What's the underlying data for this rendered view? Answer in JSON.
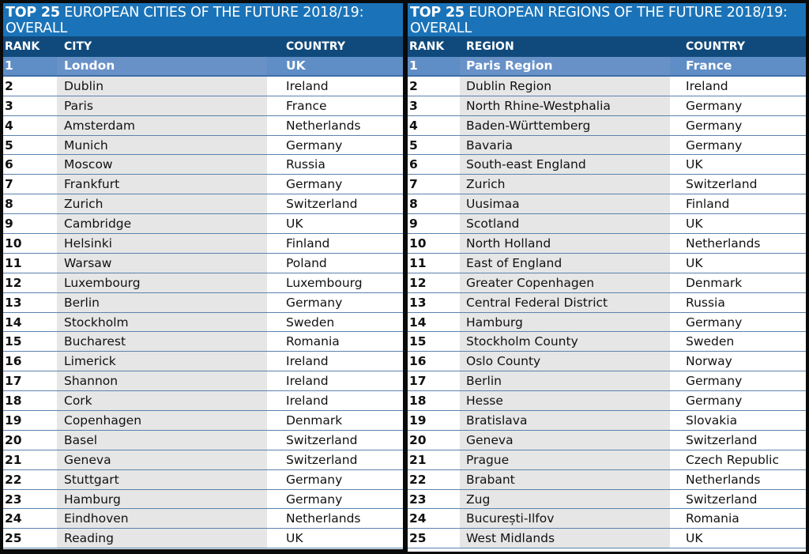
{
  "left": {
    "title_bold": "TOP 25",
    "title_rest": " EUROPEAN CITIES OF THE FUTURE 2018/19: OVERALL",
    "headers": {
      "rank": "RANK",
      "name": "CITY",
      "country": "COUNTRY"
    },
    "rows": [
      {
        "rank": "1",
        "name": "London",
        "country": "UK"
      },
      {
        "rank": "2",
        "name": "Dublin",
        "country": "Ireland"
      },
      {
        "rank": "3",
        "name": "Paris",
        "country": "France"
      },
      {
        "rank": "4",
        "name": "Amsterdam",
        "country": "Netherlands"
      },
      {
        "rank": "5",
        "name": "Munich",
        "country": "Germany"
      },
      {
        "rank": "6",
        "name": "Moscow",
        "country": "Russia"
      },
      {
        "rank": "7",
        "name": "Frankfurt",
        "country": "Germany"
      },
      {
        "rank": "8",
        "name": "Zurich",
        "country": "Switzerland"
      },
      {
        "rank": "9",
        "name": "Cambridge",
        "country": "UK"
      },
      {
        "rank": "10",
        "name": "Helsinki",
        "country": "Finland"
      },
      {
        "rank": "11",
        "name": "Warsaw",
        "country": "Poland"
      },
      {
        "rank": "12",
        "name": "Luxembourg",
        "country": "Luxembourg"
      },
      {
        "rank": "13",
        "name": "Berlin",
        "country": "Germany"
      },
      {
        "rank": "14",
        "name": "Stockholm",
        "country": "Sweden"
      },
      {
        "rank": "15",
        "name": "Bucharest",
        "country": "Romania"
      },
      {
        "rank": "16",
        "name": "Limerick",
        "country": "Ireland"
      },
      {
        "rank": "17",
        "name": "Shannon",
        "country": "Ireland"
      },
      {
        "rank": "18",
        "name": "Cork",
        "country": "Ireland"
      },
      {
        "rank": "19",
        "name": "Copenhagen",
        "country": "Denmark"
      },
      {
        "rank": "20",
        "name": "Basel",
        "country": "Switzerland"
      },
      {
        "rank": "21",
        "name": "Geneva",
        "country": "Switzerland"
      },
      {
        "rank": "22",
        "name": "Stuttgart",
        "country": "Germany"
      },
      {
        "rank": "23",
        "name": "Hamburg",
        "country": "Germany"
      },
      {
        "rank": "24",
        "name": "Eindhoven",
        "country": "Netherlands"
      },
      {
        "rank": "25",
        "name": "Reading",
        "country": "UK"
      }
    ]
  },
  "right": {
    "title_bold": "TOP 25",
    "title_rest": " EUROPEAN REGIONS OF THE FUTURE 2018/19: OVERALL",
    "headers": {
      "rank": "RANK",
      "name": "REGION",
      "country": "COUNTRY"
    },
    "rows": [
      {
        "rank": "1",
        "name": "Paris Region",
        "country": "France"
      },
      {
        "rank": "2",
        "name": "Dublin Region",
        "country": "Ireland"
      },
      {
        "rank": "3",
        "name": "North Rhine-Westphalia",
        "country": "Germany"
      },
      {
        "rank": "4",
        "name": "Baden-Württemberg",
        "country": "Germany"
      },
      {
        "rank": "5",
        "name": "Bavaria",
        "country": "Germany"
      },
      {
        "rank": "6",
        "name": "South-east England",
        "country": "UK"
      },
      {
        "rank": "7",
        "name": "Zurich",
        "country": "Switzerland"
      },
      {
        "rank": "8",
        "name": "Uusimaa",
        "country": "Finland"
      },
      {
        "rank": "9",
        "name": "Scotland",
        "country": "UK"
      },
      {
        "rank": "10",
        "name": "North Holland",
        "country": "Netherlands"
      },
      {
        "rank": "11",
        "name": "East of England",
        "country": "UK"
      },
      {
        "rank": "12",
        "name": "Greater Copenhagen",
        "country": "Denmark"
      },
      {
        "rank": "13",
        "name": "Central Federal District",
        "country": "Russia"
      },
      {
        "rank": "14",
        "name": "Hamburg",
        "country": "Germany"
      },
      {
        "rank": "15",
        "name": "Stockholm County",
        "country": "Sweden"
      },
      {
        "rank": "16",
        "name": "Oslo County",
        "country": "Norway"
      },
      {
        "rank": "17",
        "name": "Berlin",
        "country": "Germany"
      },
      {
        "rank": "18",
        "name": "Hesse",
        "country": "Germany"
      },
      {
        "rank": "19",
        "name": "Bratislava",
        "country": "Slovakia"
      },
      {
        "rank": "20",
        "name": "Geneva",
        "country": "Switzerland"
      },
      {
        "rank": "21",
        "name": "Prague",
        "country": "Czech Republic"
      },
      {
        "rank": "22",
        "name": "Brabant",
        "country": "Netherlands"
      },
      {
        "rank": "23",
        "name": "Zug",
        "country": "Switzerland"
      },
      {
        "rank": "24",
        "name": "București-Ilfov",
        "country": "Romania"
      },
      {
        "rank": "25",
        "name": "West Midlands",
        "country": "UK"
      }
    ]
  }
}
